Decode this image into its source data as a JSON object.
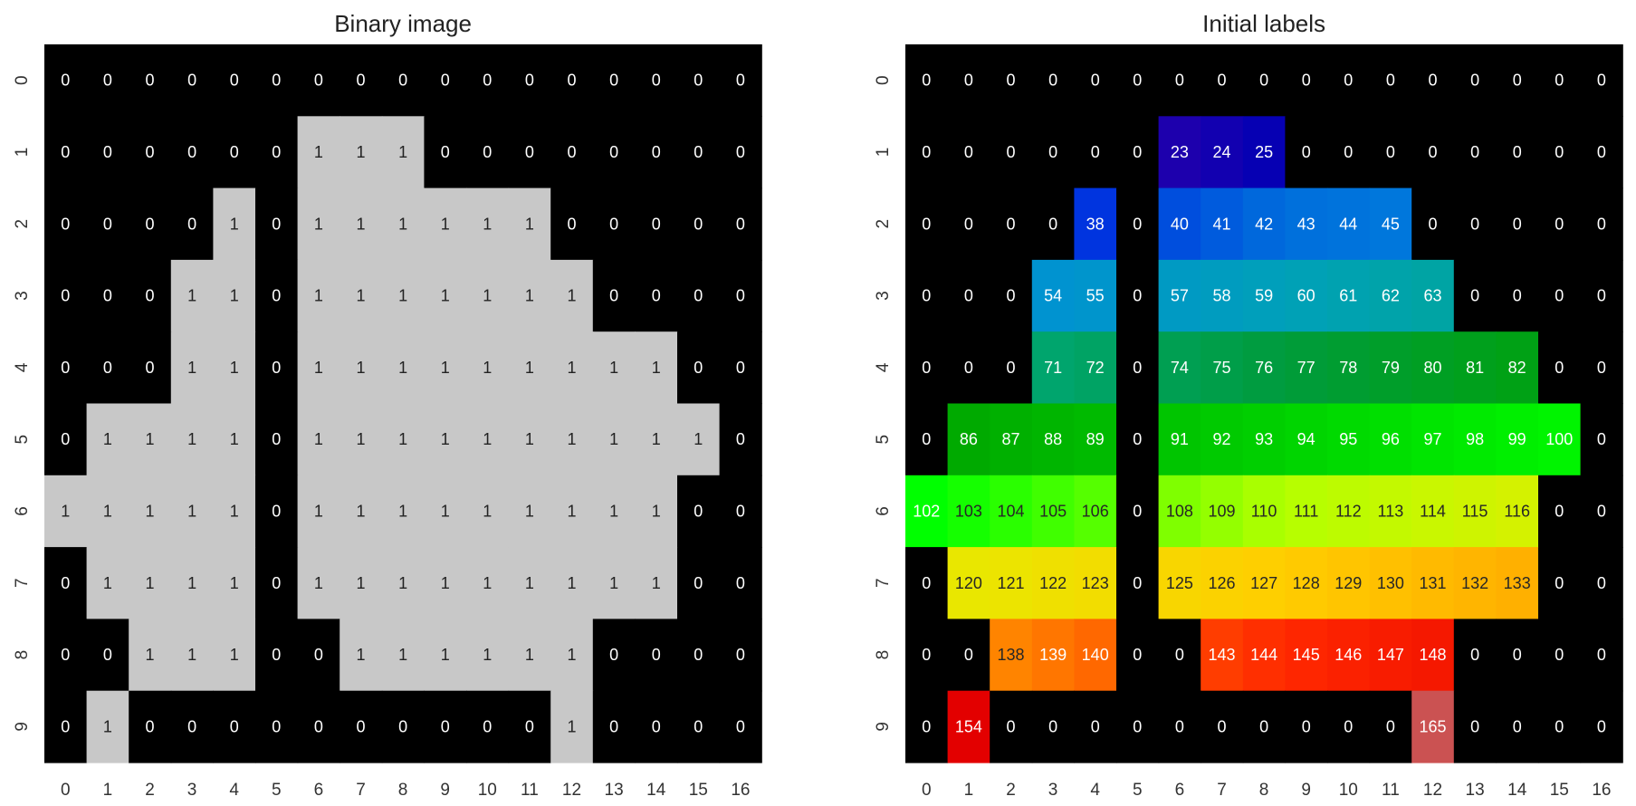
{
  "chart_data": [
    {
      "type": "heatmap",
      "title": "Binary image",
      "x_ticks": [
        "0",
        "1",
        "2",
        "3",
        "4",
        "5",
        "6",
        "7",
        "8",
        "9",
        "10",
        "11",
        "12",
        "13",
        "14",
        "15",
        "16"
      ],
      "y_ticks": [
        "0",
        "1",
        "2",
        "3",
        "4",
        "5",
        "6",
        "7",
        "8",
        "9"
      ],
      "colormap": "binary-gray",
      "colors": {
        "zero": "#000000",
        "one": "#c8c8c8",
        "text_on_zero": "#ffffff",
        "text_on_one": "#222222"
      },
      "grid": false,
      "values": [
        [
          0,
          0,
          0,
          0,
          0,
          0,
          0,
          0,
          0,
          0,
          0,
          0,
          0,
          0,
          0,
          0,
          0
        ],
        [
          0,
          0,
          0,
          0,
          0,
          0,
          1,
          1,
          1,
          0,
          0,
          0,
          0,
          0,
          0,
          0,
          0
        ],
        [
          0,
          0,
          0,
          0,
          1,
          0,
          1,
          1,
          1,
          1,
          1,
          1,
          0,
          0,
          0,
          0,
          0
        ],
        [
          0,
          0,
          0,
          1,
          1,
          0,
          1,
          1,
          1,
          1,
          1,
          1,
          1,
          0,
          0,
          0,
          0
        ],
        [
          0,
          0,
          0,
          1,
          1,
          0,
          1,
          1,
          1,
          1,
          1,
          1,
          1,
          1,
          1,
          0,
          0
        ],
        [
          0,
          1,
          1,
          1,
          1,
          0,
          1,
          1,
          1,
          1,
          1,
          1,
          1,
          1,
          1,
          1,
          0
        ],
        [
          1,
          1,
          1,
          1,
          1,
          0,
          1,
          1,
          1,
          1,
          1,
          1,
          1,
          1,
          1,
          0,
          0
        ],
        [
          0,
          1,
          1,
          1,
          1,
          0,
          1,
          1,
          1,
          1,
          1,
          1,
          1,
          1,
          1,
          0,
          0
        ],
        [
          0,
          0,
          1,
          1,
          1,
          0,
          0,
          1,
          1,
          1,
          1,
          1,
          1,
          0,
          0,
          0,
          0
        ],
        [
          0,
          1,
          0,
          0,
          0,
          0,
          0,
          0,
          0,
          0,
          0,
          0,
          1,
          0,
          0,
          0,
          0
        ]
      ]
    },
    {
      "type": "heatmap",
      "title": "Initial labels",
      "x_ticks": [
        "0",
        "1",
        "2",
        "3",
        "4",
        "5",
        "6",
        "7",
        "8",
        "9",
        "10",
        "11",
        "12",
        "13",
        "14",
        "15",
        "16"
      ],
      "y_ticks": [
        "0",
        "1",
        "2",
        "3",
        "4",
        "5",
        "6",
        "7",
        "8",
        "9"
      ],
      "colormap": "nipy_spectral",
      "value_range": [
        0,
        170
      ],
      "grid": false,
      "values": [
        [
          0,
          0,
          0,
          0,
          0,
          0,
          0,
          0,
          0,
          0,
          0,
          0,
          0,
          0,
          0,
          0,
          0
        ],
        [
          0,
          0,
          0,
          0,
          0,
          0,
          23,
          24,
          25,
          0,
          0,
          0,
          0,
          0,
          0,
          0,
          0
        ],
        [
          0,
          0,
          0,
          0,
          38,
          0,
          40,
          41,
          42,
          43,
          44,
          45,
          0,
          0,
          0,
          0,
          0
        ],
        [
          0,
          0,
          0,
          54,
          55,
          0,
          57,
          58,
          59,
          60,
          61,
          62,
          63,
          0,
          0,
          0,
          0
        ],
        [
          0,
          0,
          0,
          71,
          72,
          0,
          74,
          75,
          76,
          77,
          78,
          79,
          80,
          81,
          82,
          0,
          0
        ],
        [
          0,
          86,
          87,
          88,
          89,
          0,
          91,
          92,
          93,
          94,
          95,
          96,
          97,
          98,
          99,
          100,
          0
        ],
        [
          102,
          103,
          104,
          105,
          106,
          0,
          108,
          109,
          110,
          111,
          112,
          113,
          114,
          115,
          116,
          0,
          0
        ],
        [
          0,
          120,
          121,
          122,
          123,
          0,
          125,
          126,
          127,
          128,
          129,
          130,
          131,
          132,
          133,
          0,
          0
        ],
        [
          0,
          0,
          138,
          139,
          140,
          0,
          0,
          143,
          144,
          145,
          146,
          147,
          148,
          0,
          0,
          0,
          0
        ],
        [
          0,
          154,
          0,
          0,
          0,
          0,
          0,
          0,
          0,
          0,
          0,
          0,
          165,
          0,
          0,
          0,
          0
        ]
      ]
    }
  ]
}
